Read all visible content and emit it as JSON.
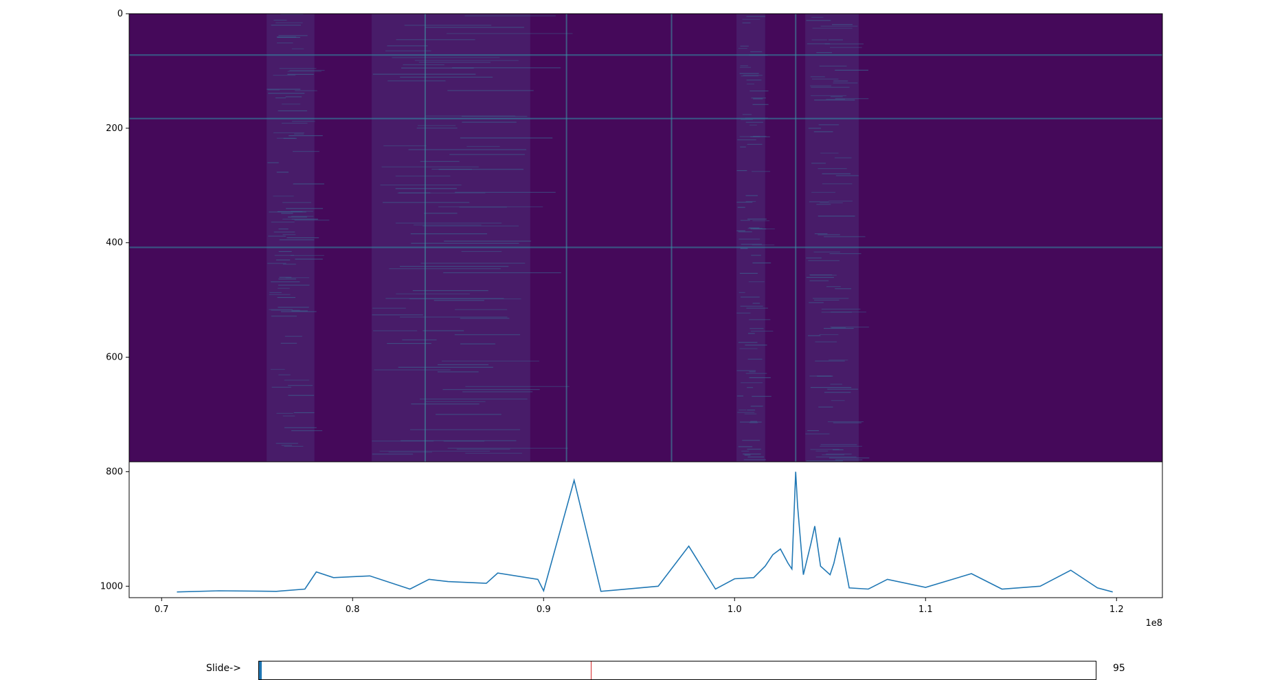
{
  "chart_data": [
    {
      "type": "heatmap",
      "colormap": "viridis",
      "yticks": [
        0,
        200,
        400,
        600,
        800,
        1000
      ],
      "ylim": [
        1020,
        0
      ],
      "image_rows": 785,
      "bright_rows": [
        72,
        183,
        408
      ],
      "bright_columns_x": [
        0.912,
        0.838,
        0.967,
        1.032
      ],
      "dense_bands_x": [
        [
          0.755,
          0.78
        ],
        [
          0.81,
          0.893
        ],
        [
          1.001,
          1.016
        ],
        [
          1.037,
          1.065
        ]
      ]
    },
    {
      "type": "line",
      "color": "#1f77b4",
      "x_multiplier": "1e8",
      "xticks": [
        0.7,
        0.8,
        0.9,
        1.0,
        1.1,
        1.2
      ],
      "xlim": [
        0.683,
        1.224
      ],
      "x": [
        0.708,
        0.73,
        0.76,
        0.775,
        0.781,
        0.79,
        0.809,
        0.83,
        0.84,
        0.85,
        0.87,
        0.876,
        0.897,
        0.9,
        0.916,
        0.93,
        0.96,
        0.976,
        0.99,
        1.0,
        1.01,
        1.016,
        1.02,
        1.024,
        1.028,
        1.03,
        1.032,
        1.033,
        1.036,
        1.04,
        1.042,
        1.045,
        1.05,
        1.052,
        1.055,
        1.06,
        1.07,
        1.08,
        1.1,
        1.124,
        1.14,
        1.16,
        1.176,
        1.19,
        1.198
      ],
      "y": [
        1010,
        1008,
        1009,
        1005,
        975,
        985,
        982,
        1005,
        988,
        992,
        995,
        977,
        988,
        1008,
        815,
        1009,
        1000,
        930,
        1005,
        987,
        985,
        965,
        945,
        935,
        960,
        970,
        800,
        860,
        980,
        925,
        895,
        965,
        980,
        960,
        915,
        1003,
        1005,
        988,
        1002,
        978,
        1005,
        1000,
        972,
        1003,
        1010
      ]
    }
  ],
  "slider": {
    "label": "Slide->",
    "value_text": "95",
    "value": 95,
    "min": 0,
    "max": 32768,
    "initial": 13000,
    "fill_color": "#1f77b4",
    "initial_marker_color": "#d62728"
  }
}
